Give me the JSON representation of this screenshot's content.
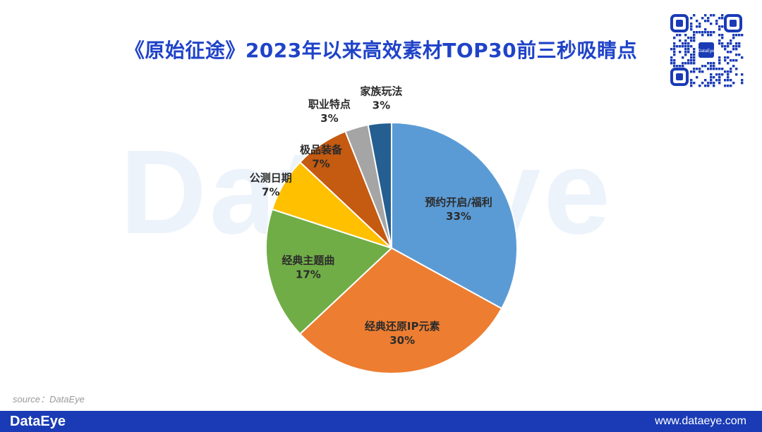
{
  "title": "《原始征途》2023年以来高效素材TOP30前三秒吸睛点",
  "watermark": "DataEye",
  "source": "source：DataEye",
  "footer": {
    "brand": "DataEye",
    "url": "www.dataeye.com"
  },
  "qr_center_label": "DataEye",
  "chart_data": {
    "type": "pie",
    "title": "《原始征途》2023年以来高效素材TOP30前三秒吸睛点",
    "slices": [
      {
        "name": "预约开启/福利",
        "value": 33,
        "label": "33%",
        "color": "#5b9bd5"
      },
      {
        "name": "经典还原IP元素",
        "value": 30,
        "label": "30%",
        "color": "#ed7d31"
      },
      {
        "name": "经典主题曲",
        "value": 17,
        "label": "17%",
        "color": "#70ad47"
      },
      {
        "name": "公测日期",
        "value": 7,
        "label": "7%",
        "color": "#ffc000"
      },
      {
        "name": "极品装备",
        "value": 7,
        "label": "7%",
        "color": "#c55a11"
      },
      {
        "name": "职业特点",
        "value": 3,
        "label": "3%",
        "color": "#a5a5a5"
      },
      {
        "name": "家族玩法",
        "value": 3,
        "label": "3%",
        "color": "#255e91"
      }
    ],
    "start_angle": "12 o'clock",
    "direction": "clockwise",
    "legend": "none"
  }
}
